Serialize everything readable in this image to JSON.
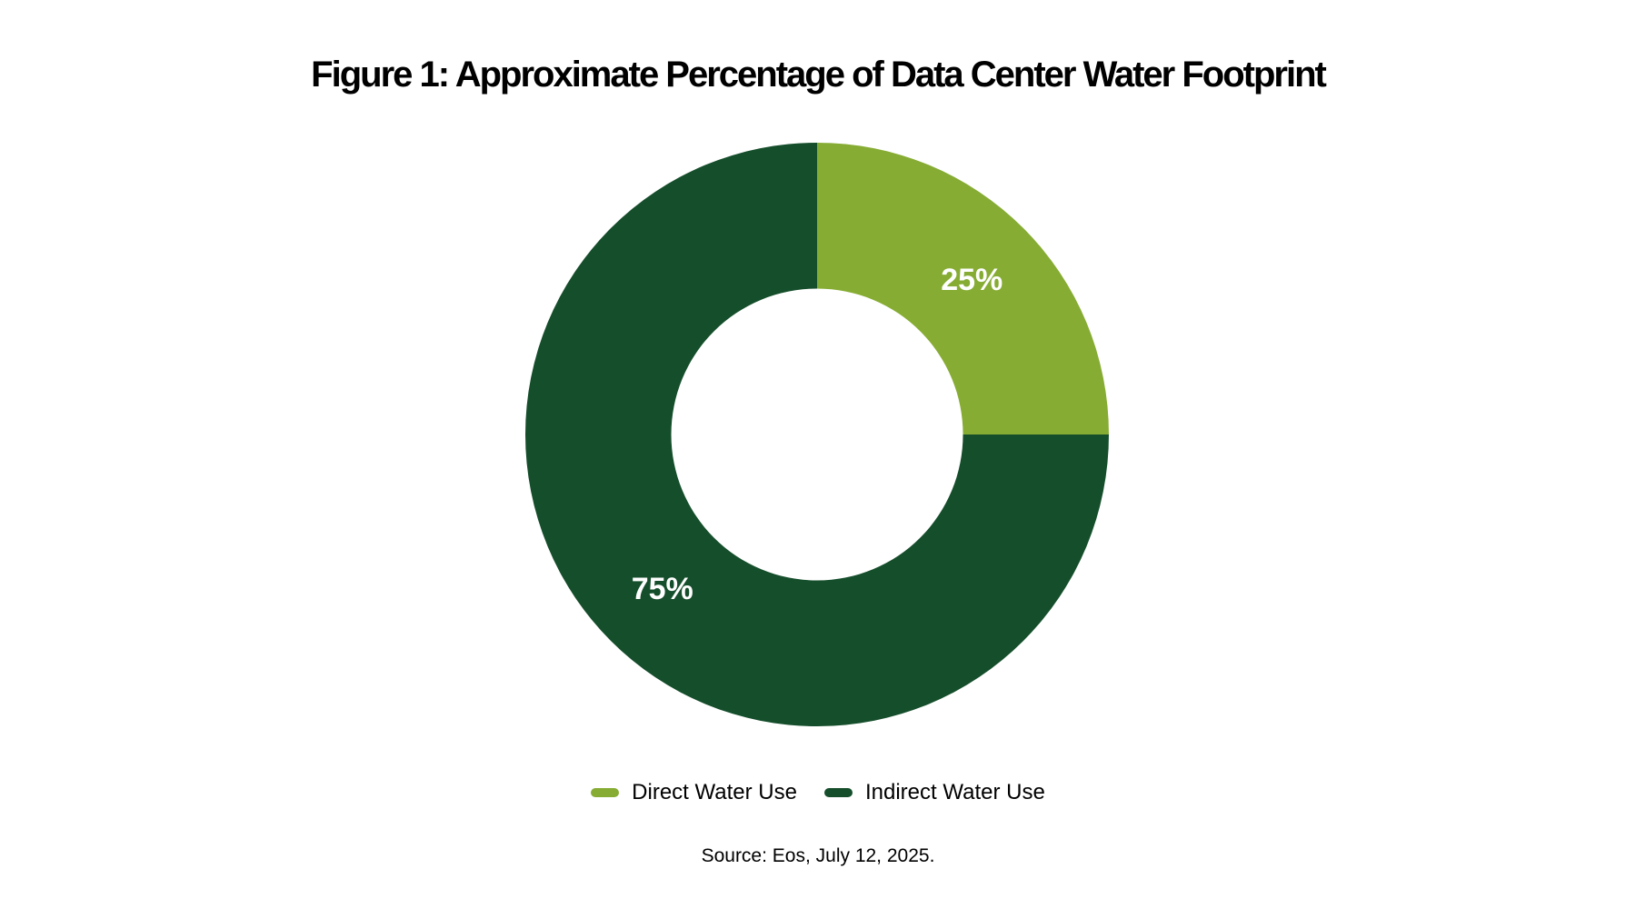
{
  "figure": {
    "title": "Figure 1: Approximate Percentage of Data Center Water Footprint",
    "source": "Source: Eos, July 12, 2025."
  },
  "legend": {
    "items": [
      {
        "label": "Direct Water Use",
        "color": "#86AC33"
      },
      {
        "label": "Indirect Water Use",
        "color": "#154E2B"
      }
    ]
  },
  "chart_data": {
    "type": "pie",
    "subtype": "donut",
    "title": "Figure 1: Approximate Percentage of Data Center Water Footprint",
    "categories": [
      "Direct Water Use",
      "Indirect Water Use"
    ],
    "values": [
      25,
      75
    ],
    "data_labels": [
      "25%",
      "75%"
    ],
    "colors": [
      "#86AC33",
      "#154E2B"
    ],
    "data_label_color": "#FFFFFF",
    "start_angle_deg": 0,
    "direction": "clockwise",
    "inner_radius_ratio": 0.5,
    "legend_position": "bottom",
    "source": "Source: Eos, July 12, 2025."
  }
}
